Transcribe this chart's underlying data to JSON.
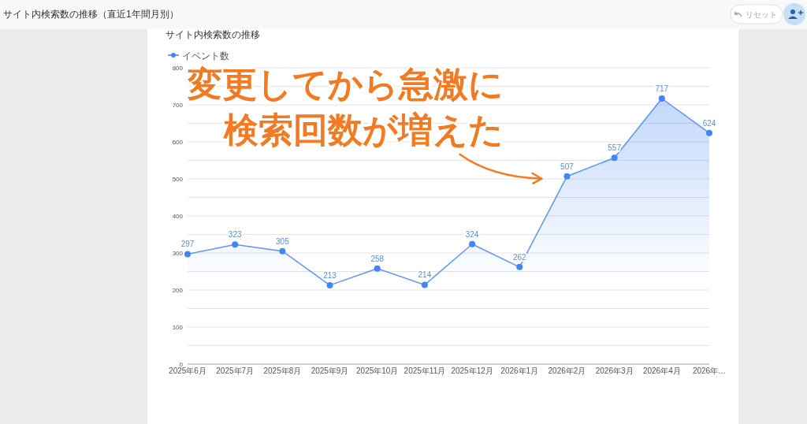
{
  "chart_data": {
    "type": "area",
    "title": "サイト内検索数の推移（直近1年間月別）",
    "subtitle": "サイト内検索数の推移",
    "categories": [
      "2025年6月",
      "2025年7月",
      "2025年8月",
      "2025年9月",
      "2025年10月",
      "2025年11月",
      "2025年12月",
      "2026年1月",
      "2026年2月",
      "2026年3月",
      "2026年4月",
      "2026年…"
    ],
    "series": [
      {
        "name": "イベント数",
        "color": "#4285f4",
        "values": [
          297,
          323,
          305,
          213,
          258,
          214,
          324,
          262,
          507,
          557,
          717,
          624
        ]
      }
    ],
    "ylim": [
      0,
      800
    ],
    "yticks": [
      0,
      {
        "value": 50,
        "label": null
      },
      100,
      {
        "value": 150,
        "label": null
      },
      200,
      {
        "value": 250,
        "label": null
      },
      300,
      {
        "value": 350,
        "label": null
      },
      400,
      {
        "value": 450,
        "label": null
      },
      500,
      {
        "value": 550,
        "label": null
      },
      600,
      {
        "value": 650,
        "label": null
      },
      700,
      {
        "value": 750,
        "label": null
      },
      800
    ],
    "grid": "y",
    "legend": "top left",
    "marker": "circle",
    "data_labels": true,
    "annotations": [
      {
        "text": "変更してから急激に検索回数が増えた",
        "x": "2026年2月",
        "y": 507
      },
      "リセット"
    ]
  }
}
